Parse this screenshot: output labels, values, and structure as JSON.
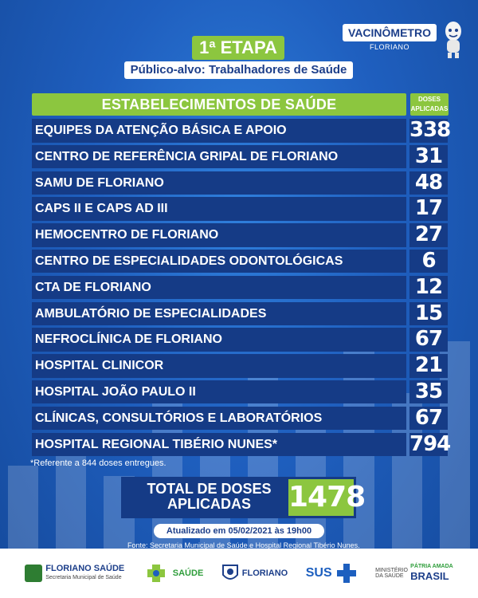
{
  "header": {
    "etapa": "1ª ETAPA",
    "publico": "Público-alvo: Trabalhadores de Saúde",
    "vacinometro": "VACINÔMETRO",
    "vacinometro_city": "FLORIANO"
  },
  "table": {
    "header_label": "ESTABELECIMENTOS DE SAÚDE",
    "doses_header": "DOSES APLICADAS",
    "rows": [
      {
        "name": "EQUIPES DA ATENÇÃO BÁSICA E APOIO",
        "doses": "338"
      },
      {
        "name": "CENTRO DE REFERÊNCIA GRIPAL DE FLORIANO",
        "doses": "31"
      },
      {
        "name": " SAMU DE FLORIANO",
        "doses": "48"
      },
      {
        "name": "CAPS II E CAPS AD III",
        "doses": "17"
      },
      {
        "name": "HEMOCENTRO DE FLORIANO",
        "doses": "27"
      },
      {
        "name": "CENTRO DE ESPECIALIDADES ODONTOLÓGICAS",
        "doses": "6"
      },
      {
        "name": "CTA DE FLORIANO",
        "doses": "12"
      },
      {
        "name": "AMBULATÓRIO DE ESPECIALIDADES",
        "doses": "15"
      },
      {
        "name": "NEFROCLÍNICA DE FLORIANO",
        "doses": "67"
      },
      {
        "name": "HOSPITAL CLINICOR",
        "doses": "21"
      },
      {
        "name": "HOSPITAL JOÃO PAULO II",
        "doses": "35"
      },
      {
        "name": "CLÍNICAS, CONSULTÓRIOS E LABORATÓRIOS",
        "doses": "67"
      },
      {
        "name": "HOSPITAL REGIONAL TIBÉRIO NUNES*",
        "doses": "794"
      }
    ],
    "note": "*Referente a 844 doses entregues."
  },
  "total": {
    "label": "TOTAL DE DOSES APLICADAS",
    "value": "1478"
  },
  "updated": "Atualizado em 05/02/2021 às 19h00",
  "source": "Fonte: Secretaria Municipal de Saúde e Hospital Regional Tibério Nunes.",
  "footer": {
    "logo1": "FLORIANO",
    "logo1b": "SAÚDE",
    "logo1_sub": "Secretaria Municipal de Saúde",
    "logo2": "SAÚDE",
    "logo3": "FLORIANO",
    "logo4": "SUS",
    "logo5_sub": "MINISTÉRIO DA SAÚDE",
    "logo5_top": "PÁTRIA AMADA",
    "logo5": "BRASIL"
  },
  "colors": {
    "accent_green": "#8cc63f",
    "row_navy": "#153b86",
    "background_blue": "#1f5fbf"
  }
}
